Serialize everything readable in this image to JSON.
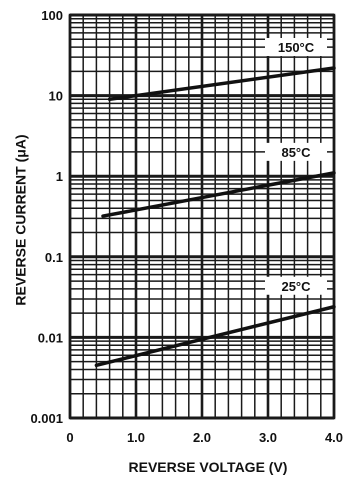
{
  "chart_data": {
    "type": "line",
    "xlabel": "REVERSE VOLTAGE (V)",
    "ylabel": "REVERSE CURRENT (μA)",
    "xlim": [
      0,
      4.0
    ],
    "ylim": [
      0.001,
      100
    ],
    "yscale": "log",
    "grid": true,
    "x_ticks": [
      "0",
      "1.0",
      "2.0",
      "3.0",
      "4.0"
    ],
    "y_ticks": [
      "0.001",
      "0.01",
      "0.1",
      "1",
      "10",
      "100"
    ],
    "series": [
      {
        "name": "150°C",
        "x": [
          0.6,
          4.0
        ],
        "y": [
          9.0,
          22.0
        ]
      },
      {
        "name": "85°C",
        "x": [
          0.5,
          4.0
        ],
        "y": [
          0.32,
          1.1
        ]
      },
      {
        "name": "25°C",
        "x": [
          0.4,
          4.0
        ],
        "y": [
          0.0045,
          0.024
        ]
      }
    ],
    "colors": {
      "line": "#111111",
      "grid": "#1a1a1a",
      "background": "#ffffff"
    }
  }
}
